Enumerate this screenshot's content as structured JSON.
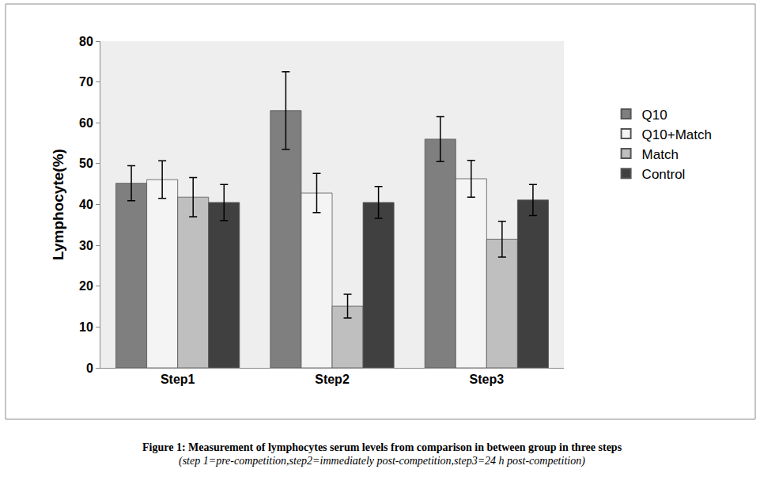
{
  "chart_data": {
    "type": "bar",
    "title": "Figure 1: Measurement of lymphocytes serum levels from comparison in between group in three steps",
    "subtitle": "(step 1=pre-competition,step2=immediately post-competition,step3=24 h post-competition)",
    "y_label": "Lymphocyte(%)",
    "categories": [
      "Step1",
      "Step2",
      "Step3"
    ],
    "series": [
      {
        "name": "Q10",
        "color": "#7f7f7f",
        "values": [
          45.2,
          63.0,
          56.0
        ],
        "error": [
          4.3,
          9.5,
          5.5
        ]
      },
      {
        "name": "Q10+Match",
        "color": "#f4f4f4",
        "values": [
          46.1,
          42.8,
          46.3
        ],
        "error": [
          4.6,
          4.8,
          4.5
        ]
      },
      {
        "name": "Match",
        "color": "#bfbfbf",
        "values": [
          41.8,
          15.1,
          31.5
        ],
        "error": [
          4.8,
          2.9,
          4.4
        ]
      },
      {
        "name": "Control",
        "color": "#404040",
        "values": [
          40.5,
          40.5,
          41.1
        ],
        "error": [
          4.4,
          3.9,
          3.8
        ]
      }
    ],
    "ylim": [
      0,
      80
    ],
    "yticks": [
      0,
      10,
      20,
      30,
      40,
      50,
      60,
      70,
      80
    ],
    "grid": false,
    "legend": "right"
  }
}
